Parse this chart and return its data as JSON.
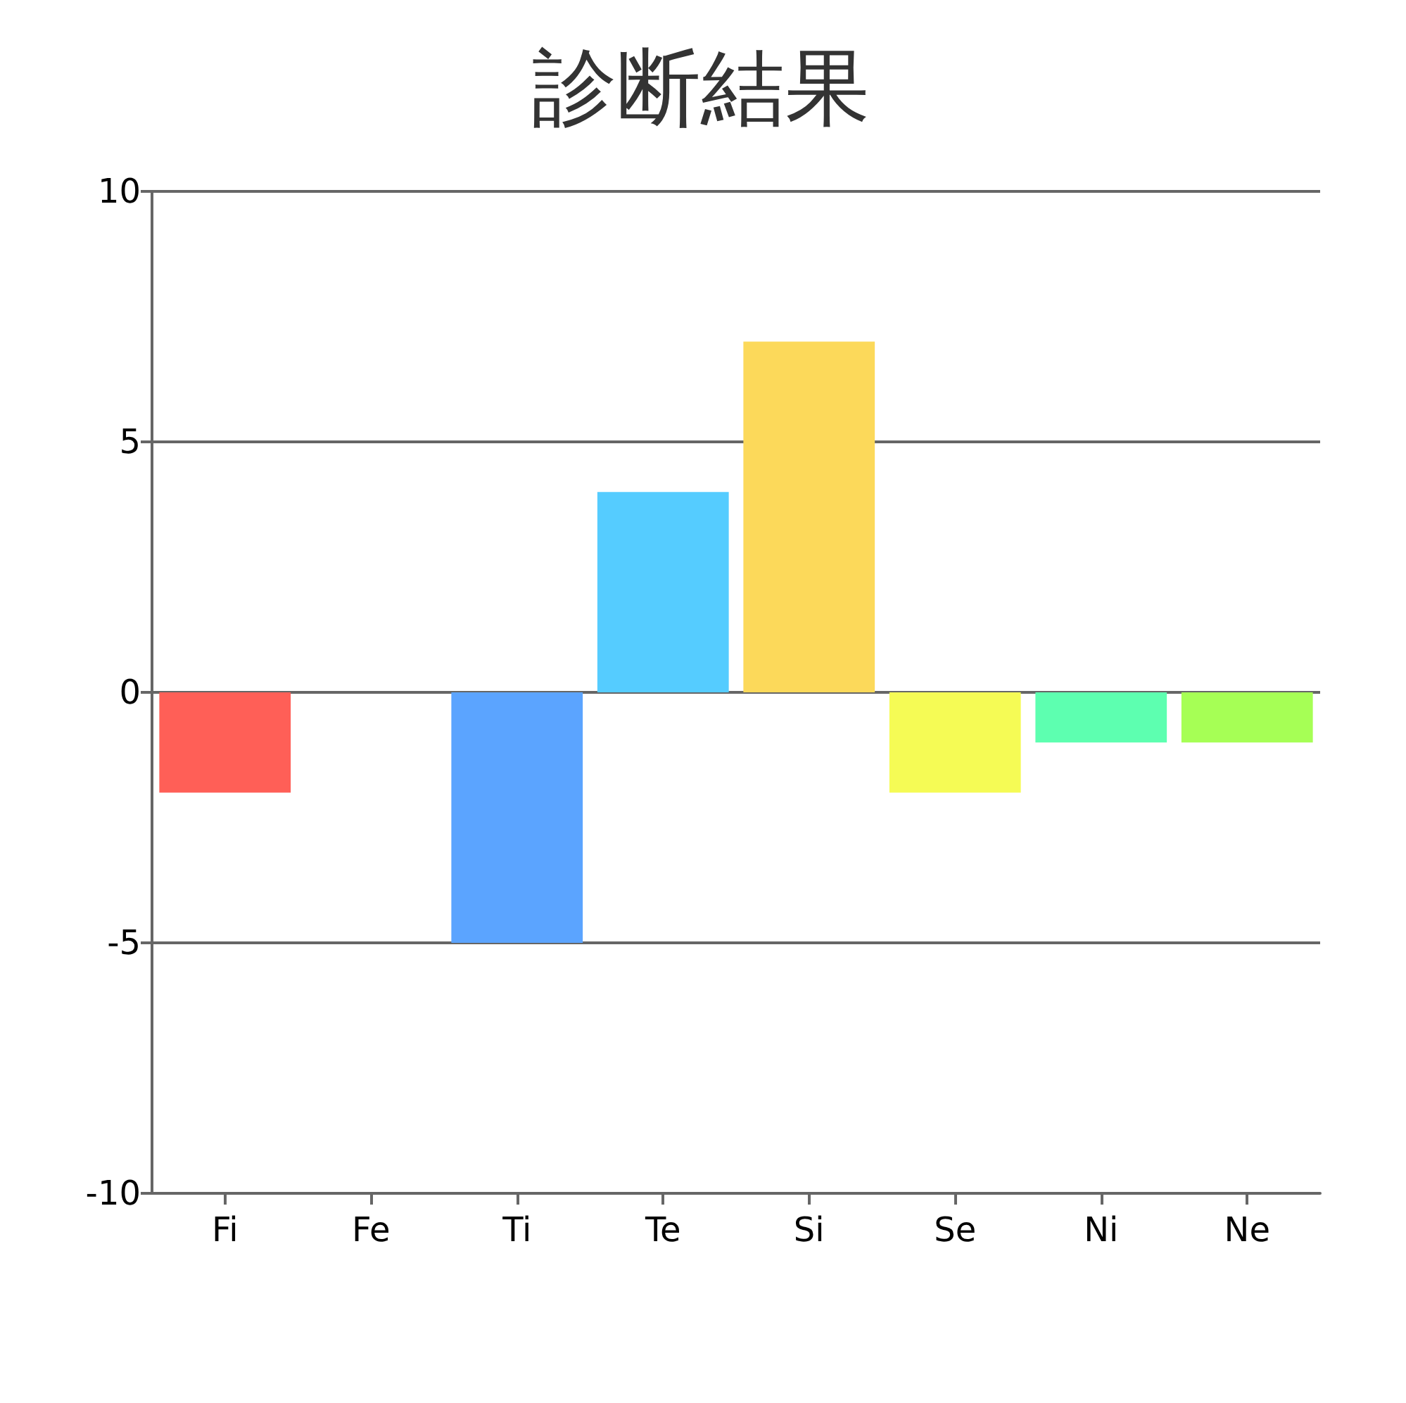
{
  "chart_data": {
    "type": "bar",
    "title": "診断結果",
    "categories": [
      "Fi",
      "Fe",
      "Ti",
      "Te",
      "Si",
      "Se",
      "Ni",
      "Ne"
    ],
    "values": [
      -2,
      0,
      -5,
      4,
      7,
      -2,
      -1,
      -1
    ],
    "colors": [
      "#ff5f57",
      "#8aa4d8",
      "#5ba4ff",
      "#55ccff",
      "#fcd95a",
      "#f5fb55",
      "#5dffb0",
      "#a6ff55"
    ],
    "ylim": [
      -10,
      10
    ],
    "yticks": [
      -10,
      -5,
      0,
      5,
      10
    ],
    "grid": "y"
  }
}
